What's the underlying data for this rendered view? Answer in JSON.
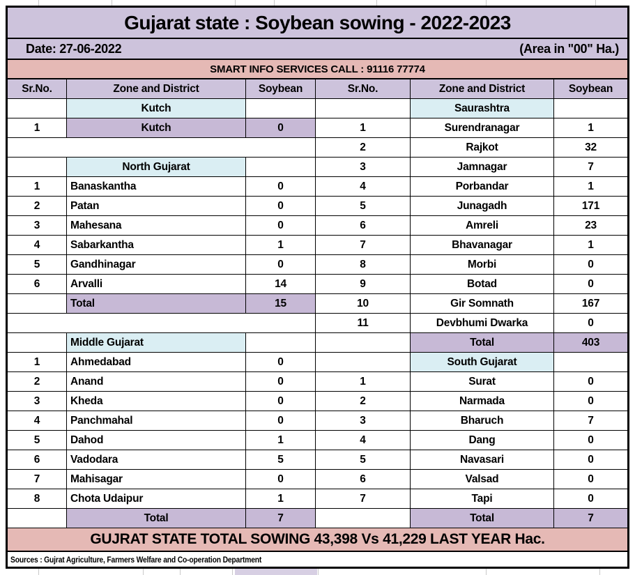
{
  "title": "Gujarat state : Soybean sowing - 2022-2023",
  "date_row": {
    "date": "Date: 27-06-2022",
    "area_unit": "(Area in \"00\" Ha.)"
  },
  "info_banner": "SMART INFO SERVICES CALL : 91116 77774",
  "columns": [
    "Sr.No.",
    "Zone and District",
    "Soybean"
  ],
  "table": {
    "left_rows": [
      {
        "type": "zone",
        "name": "Kutch",
        "align": "center"
      },
      {
        "type": "district",
        "sr": "1",
        "name": "Kutch",
        "value": "0",
        "align": "center",
        "highlight": true
      },
      {
        "type": "blank"
      },
      {
        "type": "zone",
        "name": "North Gujarat",
        "align": "center"
      },
      {
        "type": "district",
        "sr": "1",
        "name": "Banaskantha",
        "value": "0",
        "align": "left"
      },
      {
        "type": "district",
        "sr": "2",
        "name": "Patan",
        "value": "0",
        "align": "left"
      },
      {
        "type": "district",
        "sr": "3",
        "name": "Mahesana",
        "value": "0",
        "align": "left"
      },
      {
        "type": "district",
        "sr": "4",
        "name": "Sabarkantha",
        "value": "1",
        "align": "left"
      },
      {
        "type": "district",
        "sr": "5",
        "name": "Gandhinagar",
        "value": "0",
        "align": "left"
      },
      {
        "type": "district",
        "sr": "6",
        "name": "Arvalli",
        "value": "14",
        "align": "left"
      },
      {
        "type": "total",
        "name": "Total",
        "value": "15",
        "align": "left"
      },
      {
        "type": "blank"
      },
      {
        "type": "zone",
        "name": "Middle Gujarat",
        "align": "left"
      },
      {
        "type": "district",
        "sr": "1",
        "name": "Ahmedabad",
        "value": "0",
        "align": "left"
      },
      {
        "type": "district",
        "sr": "2",
        "name": "Anand",
        "value": "0",
        "align": "left"
      },
      {
        "type": "district",
        "sr": "3",
        "name": "Kheda",
        "value": "0",
        "align": "left"
      },
      {
        "type": "district",
        "sr": "4",
        "name": "Panchmahal",
        "value": "0",
        "align": "left"
      },
      {
        "type": "district",
        "sr": "5",
        "name": "Dahod",
        "value": "1",
        "align": "left"
      },
      {
        "type": "district",
        "sr": "6",
        "name": "Vadodara",
        "value": "5",
        "align": "left"
      },
      {
        "type": "district",
        "sr": "7",
        "name": "Mahisagar",
        "value": "0",
        "align": "left"
      },
      {
        "type": "district",
        "sr": "8",
        "name": "Chota Udaipur",
        "value": "1",
        "align": "left"
      },
      {
        "type": "total",
        "name": "Total",
        "value": "7",
        "align": "center"
      }
    ],
    "right_rows": [
      {
        "type": "zone",
        "name": "Saurashtra",
        "align": "center"
      },
      {
        "type": "district",
        "sr": "1",
        "name": "Surendranagar",
        "value": "1",
        "align": "center"
      },
      {
        "type": "district",
        "sr": "2",
        "name": "Rajkot",
        "value": "32",
        "align": "center"
      },
      {
        "type": "district",
        "sr": "3",
        "name": "Jamnagar",
        "value": "7",
        "align": "center"
      },
      {
        "type": "district",
        "sr": "4",
        "name": "Porbandar",
        "value": "1",
        "align": "center"
      },
      {
        "type": "district",
        "sr": "5",
        "name": "Junagadh",
        "value": "171",
        "align": "center"
      },
      {
        "type": "district",
        "sr": "6",
        "name": "Amreli",
        "value": "23",
        "align": "center"
      },
      {
        "type": "district",
        "sr": "7",
        "name": "Bhavanagar",
        "value": "1",
        "align": "center"
      },
      {
        "type": "district",
        "sr": "8",
        "name": "Morbi",
        "value": "0",
        "align": "center"
      },
      {
        "type": "district",
        "sr": "9",
        "name": "Botad",
        "value": "0",
        "align": "center"
      },
      {
        "type": "district",
        "sr": "10",
        "name": "Gir Somnath",
        "value": "167",
        "align": "center"
      },
      {
        "type": "district",
        "sr": "11",
        "name": "Devbhumi Dwarka",
        "value": "0",
        "align": "center"
      },
      {
        "type": "total",
        "name": "Total",
        "value": "403",
        "align": "center"
      },
      {
        "type": "zone",
        "name": "South Gujarat",
        "align": "center"
      },
      {
        "type": "district",
        "sr": "1",
        "name": "Surat",
        "value": "0",
        "align": "center"
      },
      {
        "type": "district",
        "sr": "2",
        "name": "Narmada",
        "value": "0",
        "align": "center"
      },
      {
        "type": "district",
        "sr": "3",
        "name": "Bharuch",
        "value": "7",
        "align": "center"
      },
      {
        "type": "district",
        "sr": "4",
        "name": "Dang",
        "value": "0",
        "align": "center"
      },
      {
        "type": "district",
        "sr": "5",
        "name": "Navasari",
        "value": "0",
        "align": "center"
      },
      {
        "type": "district",
        "sr": "6",
        "name": "Valsad",
        "value": "0",
        "align": "center"
      },
      {
        "type": "district",
        "sr": "7",
        "name": "Tapi",
        "value": "0",
        "align": "center"
      },
      {
        "type": "total",
        "name": "Total",
        "value": "7",
        "align": "center"
      }
    ]
  },
  "footer_total": "GUJRAT STATE TOTAL SOWING 43,398 Vs 41,229 LAST YEAR Hac.",
  "sources": "Sources : Gujrat Agriculture, Farmers Welfare and Co-operation Department",
  "colors": {
    "lavender": "#cdc3dc",
    "purple": "#c7b9d6",
    "zone_blue": "#daeef3",
    "banner_pink": "#e5b9b5",
    "border_black": "#000000",
    "gridline_gray": "#c9c9c9"
  }
}
